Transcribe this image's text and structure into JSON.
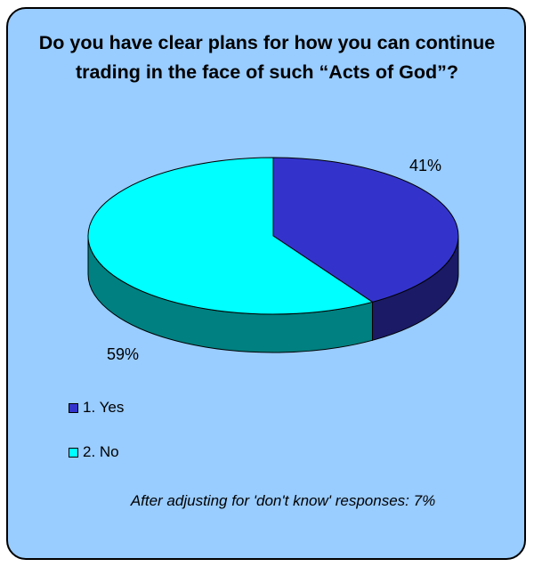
{
  "chart_data": {
    "type": "pie",
    "title": "Do you have clear plans for how you can continue trading in the face of such “Acts of God”?",
    "slices": [
      {
        "label": "1. Yes",
        "value": 41,
        "data_label": "41%",
        "color": "#3333cc",
        "side_color": "#1a1a66"
      },
      {
        "label": "2. No",
        "value": 59,
        "data_label": "59%",
        "color": "#00ffff",
        "side_color": "#008080"
      }
    ],
    "style": "3d",
    "background": "#99ccff",
    "legend_position": "bottom-left",
    "footnote": "After adjusting for 'don't know' responses: 7%"
  }
}
